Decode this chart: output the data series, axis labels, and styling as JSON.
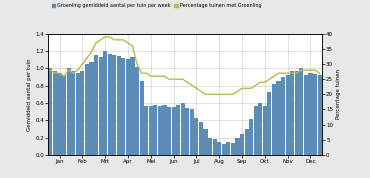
{
  "bar_values": [
    1.0,
    0.97,
    0.95,
    0.92,
    1.0,
    0.97,
    0.95,
    0.97,
    1.05,
    1.07,
    1.15,
    1.13,
    1.2,
    1.17,
    1.16,
    1.14,
    1.12,
    1.11,
    1.13,
    1.02,
    0.85,
    0.57,
    0.57,
    0.58,
    0.57,
    0.58,
    0.55,
    0.55,
    0.58,
    0.6,
    0.54,
    0.53,
    0.43,
    0.38,
    0.3,
    0.2,
    0.18,
    0.15,
    0.13,
    0.15,
    0.14,
    0.2,
    0.24,
    0.3,
    0.42,
    0.57,
    0.6,
    0.57,
    0.73,
    0.82,
    0.85,
    0.9,
    0.92,
    0.97,
    0.97,
    1.0,
    0.92,
    0.95,
    0.93,
    0.92
  ],
  "line_values": [
    28,
    27,
    27,
    26,
    28,
    27,
    28,
    30,
    32,
    34,
    37,
    38,
    39,
    39,
    38,
    38,
    38,
    37,
    36,
    30,
    27,
    27,
    26,
    26,
    26,
    26,
    25,
    25,
    25,
    25,
    24,
    23,
    22,
    21,
    20,
    20,
    20,
    20,
    20,
    20,
    20,
    21,
    22,
    22,
    22,
    23,
    24,
    24,
    25,
    26,
    27,
    27,
    27,
    27,
    27,
    28,
    28,
    28,
    28,
    27
  ],
  "months": [
    "Jan",
    "Feb",
    "Mrt",
    "Apr",
    "Mei",
    "Jun",
    "Jul",
    "Aug",
    "Sep",
    "Okt",
    "Nov",
    "Dec"
  ],
  "month_positions": [
    2,
    7,
    12,
    17,
    22,
    27,
    32,
    37,
    42,
    47,
    52,
    57
  ],
  "bar_color": "#5b8db8",
  "line_color": "#b8be45",
  "ylabel_left": "Gemiddeld aantal per tuin",
  "ylabel_right": "Percentage tuinen",
  "ylim_left": [
    0.0,
    1.4
  ],
  "ylim_right": [
    0,
    40
  ],
  "yticks_left": [
    0.0,
    0.2,
    0.4,
    0.6,
    0.8,
    1.0,
    1.2,
    1.4
  ],
  "yticks_right": [
    0,
    5,
    10,
    15,
    20,
    25,
    30,
    35,
    40
  ],
  "legend_bar": "Groenling gemiddeld aantal per tuin per week",
  "legend_line": "Percentage tuinen met Groenling",
  "background_color": "#e8e8e8",
  "plot_bg_color": "#ffffff",
  "grid_color": "#cccccc"
}
